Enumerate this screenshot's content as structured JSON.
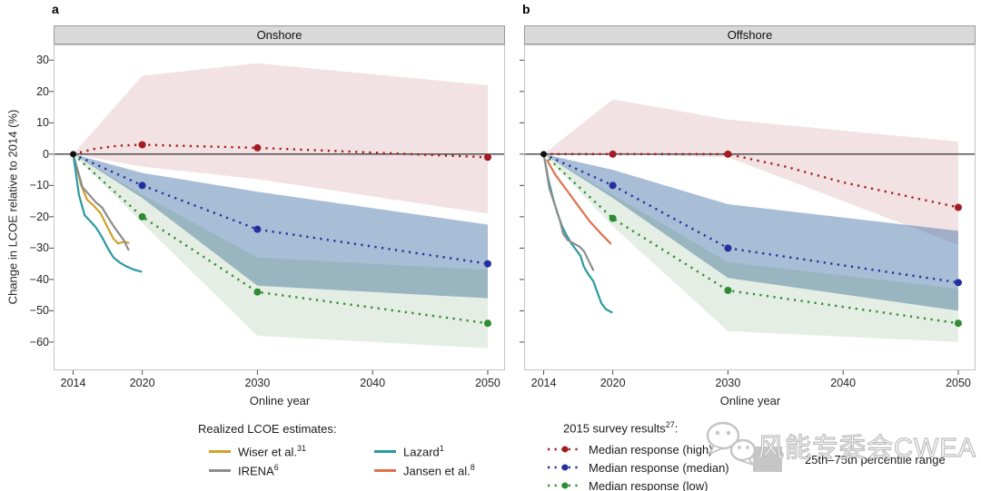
{
  "figure": {
    "panel_a_label": "a",
    "panel_b_label": "b"
  },
  "legend": {
    "realized_title": "Realized LCOE estimates:",
    "realized_items": [
      {
        "label": "Wiser et al.",
        "sup": "31",
        "color": "#d1a12b"
      },
      {
        "label": "IRENA",
        "sup": "6",
        "color": "#8c8c8c"
      },
      {
        "label": "Lazard",
        "sup": "1",
        "color": "#2b9aa0"
      },
      {
        "label": "Jansen et al.",
        "sup": "8",
        "color": "#e0714d"
      }
    ],
    "survey_title_main": "2015 survey results",
    "survey_title_sup": "27",
    "survey_title_colon": ":",
    "survey_items": [
      {
        "label": "Median response (high)",
        "color": "#a21c21"
      },
      {
        "label": "Median response (median)",
        "color": "#232f9f"
      },
      {
        "label": "Median response (low)",
        "color": "#2e8b33"
      }
    ],
    "percentile_label": "25th–75th percentile range",
    "percentile_color": "#c6c6c6"
  },
  "watermark": {
    "text": "风能专委会CWEA"
  },
  "chart_data": [
    {
      "type": "line",
      "title": "Onshore",
      "xlabel": "Online year",
      "ylabel": "Change in LCOE relative to 2014 (%)",
      "xlim": [
        2012.3,
        2051.5
      ],
      "ylim": [
        -69,
        35
      ],
      "x_ticks": [
        2014,
        2020,
        2030,
        2040,
        2050
      ],
      "y_ticks": [
        30,
        20,
        10,
        0,
        -10,
        -20,
        -30,
        -40,
        -50,
        -60
      ],
      "origin_point": {
        "x": 2014,
        "y": 0
      },
      "survey_series": [
        {
          "name": "Median response (high)",
          "color": "#a21c21",
          "band_color": "rgba(165,30,40,0.13)",
          "x": [
            2014,
            2016,
            2018,
            2020,
            2030,
            2050
          ],
          "y": [
            0,
            1.8,
            2.7,
            3,
            2,
            -1
          ],
          "marker_x": [
            2020,
            2030,
            2050
          ],
          "marker_y": [
            3,
            2,
            -1
          ],
          "band": {
            "x": [
              2014,
              2020,
              2030,
              2050
            ],
            "low": [
              0,
              -4,
              -8,
              -19
            ],
            "high": [
              0,
              25,
              29,
              22
            ]
          }
        },
        {
          "name": "Median response (median)",
          "color": "#232f9f",
          "band_color": "rgba(62,110,165,0.45)",
          "x": [
            2014,
            2020,
            2030,
            2050
          ],
          "y": [
            0,
            -10,
            -24,
            -35
          ],
          "marker_x": [
            2020,
            2030,
            2050
          ],
          "marker_y": [
            -10,
            -24,
            -35
          ],
          "band": {
            "x": [
              2014,
              2020,
              2030,
              2050
            ],
            "low": [
              0,
              -14,
              -42,
              -46
            ],
            "high": [
              0,
              -6,
              -12,
              -22.5
            ]
          }
        },
        {
          "name": "Median response (low)",
          "color": "#2e8b33",
          "band_color": "rgba(45,125,45,0.13)",
          "x": [
            2014,
            2020,
            2030,
            2050
          ],
          "y": [
            0,
            -20,
            -44,
            -54
          ],
          "marker_x": [
            2020,
            2030,
            2050
          ],
          "marker_y": [
            -20,
            -44,
            -54
          ],
          "band": {
            "x": [
              2014,
              2020,
              2030,
              2050
            ],
            "low": [
              0,
              -22,
              -58,
              -62
            ],
            "high": [
              0,
              -13,
              -33,
              -37
            ]
          }
        }
      ],
      "realized_series": [
        {
          "name": "Wiser et al.",
          "sup": "31",
          "color": "#d1a12b",
          "points": [
            [
              2014,
              0
            ],
            [
              2014.7,
              -10
            ],
            [
              2015.2,
              -14.5
            ],
            [
              2015.8,
              -16.5
            ],
            [
              2016.4,
              -19
            ],
            [
              2017,
              -23.5
            ],
            [
              2017.5,
              -27
            ],
            [
              2017.9,
              -28.5
            ],
            [
              2018.4,
              -28
            ],
            [
              2018.8,
              -28.3
            ]
          ]
        },
        {
          "name": "IRENA",
          "sup": "6",
          "color": "#8c8c8c",
          "points": [
            [
              2014,
              0
            ],
            [
              2014.8,
              -10.5
            ],
            [
              2015.4,
              -13
            ],
            [
              2016,
              -15.5
            ],
            [
              2016.5,
              -17
            ],
            [
              2017,
              -20
            ],
            [
              2017.6,
              -23.5
            ],
            [
              2018,
              -25.5
            ],
            [
              2018.4,
              -27.5
            ],
            [
              2018.8,
              -30.5
            ]
          ]
        },
        {
          "name": "Lazard",
          "sup": "1",
          "color": "#2b9aa0",
          "points": [
            [
              2014,
              0
            ],
            [
              2014.5,
              -13
            ],
            [
              2015,
              -19.5
            ],
            [
              2015.5,
              -21.5
            ],
            [
              2016,
              -23.5
            ],
            [
              2016.5,
              -26.5
            ],
            [
              2017,
              -30
            ],
            [
              2017.5,
              -33
            ],
            [
              2018,
              -34.5
            ],
            [
              2018.6,
              -35.8
            ],
            [
              2019.2,
              -36.8
            ],
            [
              2019.9,
              -37.5
            ]
          ]
        }
      ]
    },
    {
      "type": "line",
      "title": "Offshore",
      "xlabel": "Online year",
      "ylabel": "Change in LCOE relative to 2014 (%)",
      "xlim": [
        2012.3,
        2051.5
      ],
      "ylim": [
        -69,
        35
      ],
      "x_ticks": [
        2014,
        2020,
        2030,
        2040,
        2050
      ],
      "y_ticks": [
        30,
        20,
        10,
        0,
        -10,
        -20,
        -30,
        -40,
        -50,
        -60
      ],
      "origin_point": {
        "x": 2014,
        "y": 0
      },
      "survey_series": [
        {
          "name": "Median response (high)",
          "color": "#a21c21",
          "band_color": "rgba(165,30,40,0.13)",
          "x": [
            2014,
            2020,
            2030,
            2035,
            2040,
            2045,
            2050
          ],
          "y": [
            0,
            0,
            0,
            -4,
            -9,
            -13,
            -17
          ],
          "marker_x": [
            2020,
            2030,
            2050
          ],
          "marker_y": [
            0,
            0,
            -17
          ],
          "band": {
            "x": [
              2014,
              2020,
              2030,
              2050
            ],
            "low": [
              0,
              0,
              -1,
              -29
            ],
            "high": [
              0,
              17.5,
              11,
              4
            ]
          }
        },
        {
          "name": "Median response (median)",
          "color": "#232f9f",
          "band_color": "rgba(62,110,165,0.45)",
          "x": [
            2014,
            2020,
            2030,
            2050
          ],
          "y": [
            0,
            -10,
            -30,
            -41
          ],
          "marker_x": [
            2020,
            2030,
            2050
          ],
          "marker_y": [
            -10,
            -30,
            -41
          ],
          "band": {
            "x": [
              2014,
              2020,
              2030,
              2050
            ],
            "low": [
              0,
              -14,
              -39.5,
              -50
            ],
            "high": [
              0,
              -5,
              -16,
              -24.5
            ]
          }
        },
        {
          "name": "Median response (low)",
          "color": "#2e8b33",
          "band_color": "rgba(45,125,45,0.13)",
          "x": [
            2014,
            2020,
            2030,
            2050
          ],
          "y": [
            0,
            -20.5,
            -43.5,
            -54
          ],
          "marker_x": [
            2020,
            2030,
            2050
          ],
          "marker_y": [
            -20.5,
            -43.5,
            -54
          ],
          "band": {
            "x": [
              2014,
              2020,
              2030,
              2050
            ],
            "low": [
              0,
              -23,
              -56.5,
              -60
            ],
            "high": [
              0,
              -13,
              -34.5,
              -43
            ]
          }
        }
      ],
      "realized_series": [
        {
          "name": "Lazard",
          "sup": "1",
          "color": "#2b9aa0",
          "points": [
            [
              2014,
              0
            ],
            [
              2014.4,
              -8
            ],
            [
              2014.8,
              -14
            ],
            [
              2015.2,
              -19
            ],
            [
              2015.6,
              -23
            ],
            [
              2016,
              -26
            ],
            [
              2016.4,
              -28.5
            ],
            [
              2016.8,
              -30.5
            ],
            [
              2017.2,
              -32.5
            ],
            [
              2017.5,
              -36
            ],
            [
              2017.9,
              -38.5
            ],
            [
              2018.3,
              -40.5
            ],
            [
              2018.7,
              -44.5
            ],
            [
              2019,
              -47.5
            ],
            [
              2019.4,
              -49.5
            ],
            [
              2019.9,
              -50.5
            ]
          ]
        },
        {
          "name": "IRENA",
          "sup": "6",
          "color": "#8c8c8c",
          "points": [
            [
              2014,
              0
            ],
            [
              2014.5,
              -11
            ],
            [
              2015,
              -16.5
            ],
            [
              2015.4,
              -21
            ],
            [
              2015.7,
              -25.5
            ],
            [
              2016.1,
              -27.5
            ],
            [
              2016.6,
              -28.5
            ],
            [
              2017.1,
              -29.5
            ],
            [
              2017.5,
              -31
            ],
            [
              2017.9,
              -34
            ],
            [
              2018.3,
              -37
            ]
          ]
        },
        {
          "name": "Jansen et al.",
          "sup": "8",
          "color": "#e0714d",
          "points": [
            [
              2014.3,
              -2
            ],
            [
              2015,
              -6.5
            ],
            [
              2016,
              -11.5
            ],
            [
              2017,
              -16.5
            ],
            [
              2018,
              -21.5
            ],
            [
              2019,
              -25.5
            ],
            [
              2019.8,
              -28.5
            ]
          ]
        }
      ]
    }
  ]
}
